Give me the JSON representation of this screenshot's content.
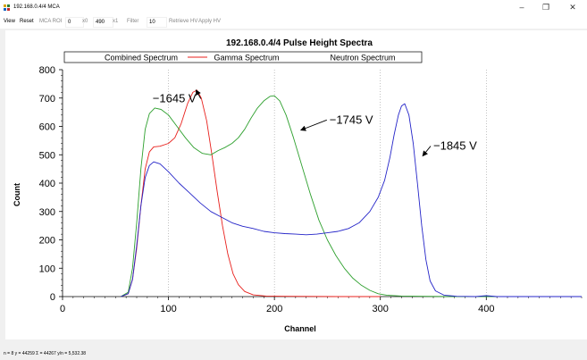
{
  "window": {
    "title": "192.168.0.4/4 MCA",
    "minimize_glyph": "–",
    "restore_glyph": "❐",
    "close_glyph": "✕"
  },
  "toolbar": {
    "view": "View",
    "reset": "Reset",
    "mca_roi": "MCA ROI",
    "x0_value": "0",
    "x0_label": "x0",
    "x1_value": "490",
    "x1_label": "x1",
    "filter_label": "Filter",
    "filter_value": "10",
    "retrieve_hv": "Retrieve HV",
    "apply_hv": "Apply HV"
  },
  "status": {
    "text": "n = 8   y = 44259   Σ = 44267   y/n = 5,532.38"
  },
  "chart_data": {
    "type": "line",
    "title": "192.168.0.4/4 Pulse Height Spectra",
    "xlabel": "Channel",
    "ylabel": "Count",
    "xlim": [
      0,
      490
    ],
    "ylim": [
      0,
      800
    ],
    "x_ticks": [
      0,
      100,
      200,
      300,
      400
    ],
    "y_ticks": [
      0,
      100,
      200,
      300,
      400,
      500,
      600,
      700,
      800
    ],
    "grid": "vertical-dotted",
    "legend_placement": "top",
    "legend": [
      "Combined Spectrum",
      "Gamma Spectrum",
      "Neutron Spectrum"
    ],
    "series": [
      {
        "name": "−1645 V",
        "color": "#e8201c",
        "points": [
          [
            55,
            0
          ],
          [
            62,
            10
          ],
          [
            66,
            60
          ],
          [
            70,
            170
          ],
          [
            74,
            320
          ],
          [
            78,
            450
          ],
          [
            82,
            510
          ],
          [
            86,
            528
          ],
          [
            92,
            530
          ],
          [
            100,
            540
          ],
          [
            106,
            560
          ],
          [
            112,
            610
          ],
          [
            118,
            680
          ],
          [
            123,
            720
          ],
          [
            127,
            728
          ],
          [
            131,
            700
          ],
          [
            136,
            620
          ],
          [
            141,
            500
          ],
          [
            146,
            370
          ],
          [
            151,
            250
          ],
          [
            156,
            150
          ],
          [
            161,
            80
          ],
          [
            166,
            42
          ],
          [
            172,
            18
          ],
          [
            180,
            6
          ],
          [
            192,
            2
          ],
          [
            210,
            1
          ],
          [
            260,
            0
          ],
          [
            300,
            0
          ]
        ]
      },
      {
        "name": "−1745 V",
        "color": "#2ea02e",
        "points": [
          [
            55,
            0
          ],
          [
            62,
            15
          ],
          [
            66,
            100
          ],
          [
            70,
            260
          ],
          [
            74,
            450
          ],
          [
            78,
            590
          ],
          [
            82,
            645
          ],
          [
            87,
            665
          ],
          [
            93,
            660
          ],
          [
            100,
            640
          ],
          [
            108,
            600
          ],
          [
            116,
            560
          ],
          [
            124,
            525
          ],
          [
            132,
            505
          ],
          [
            140,
            500
          ],
          [
            147,
            515
          ],
          [
            153,
            525
          ],
          [
            160,
            540
          ],
          [
            166,
            560
          ],
          [
            172,
            590
          ],
          [
            178,
            630
          ],
          [
            184,
            665
          ],
          [
            190,
            690
          ],
          [
            196,
            706
          ],
          [
            200,
            708
          ],
          [
            205,
            690
          ],
          [
            211,
            640
          ],
          [
            218,
            560
          ],
          [
            226,
            460
          ],
          [
            234,
            360
          ],
          [
            242,
            270
          ],
          [
            250,
            200
          ],
          [
            258,
            145
          ],
          [
            266,
            100
          ],
          [
            274,
            65
          ],
          [
            282,
            40
          ],
          [
            290,
            22
          ],
          [
            298,
            10
          ],
          [
            306,
            5
          ],
          [
            320,
            2
          ],
          [
            340,
            1
          ],
          [
            370,
            0
          ],
          [
            490,
            0
          ]
        ]
      },
      {
        "name": "−1845 V",
        "color": "#2424c8",
        "points": [
          [
            55,
            0
          ],
          [
            62,
            10
          ],
          [
            66,
            60
          ],
          [
            70,
            180
          ],
          [
            74,
            320
          ],
          [
            78,
            420
          ],
          [
            82,
            462
          ],
          [
            86,
            475
          ],
          [
            92,
            468
          ],
          [
            100,
            440
          ],
          [
            110,
            400
          ],
          [
            120,
            365
          ],
          [
            130,
            330
          ],
          [
            140,
            300
          ],
          [
            150,
            280
          ],
          [
            160,
            260
          ],
          [
            170,
            248
          ],
          [
            180,
            240
          ],
          [
            190,
            230
          ],
          [
            200,
            225
          ],
          [
            210,
            222
          ],
          [
            220,
            220
          ],
          [
            230,
            218
          ],
          [
            240,
            220
          ],
          [
            250,
            225
          ],
          [
            260,
            230
          ],
          [
            270,
            240
          ],
          [
            280,
            260
          ],
          [
            290,
            300
          ],
          [
            298,
            350
          ],
          [
            304,
            410
          ],
          [
            309,
            490
          ],
          [
            313,
            570
          ],
          [
            317,
            640
          ],
          [
            320,
            672
          ],
          [
            323,
            680
          ],
          [
            327,
            640
          ],
          [
            331,
            540
          ],
          [
            335,
            400
          ],
          [
            339,
            250
          ],
          [
            343,
            130
          ],
          [
            347,
            55
          ],
          [
            352,
            20
          ],
          [
            360,
            5
          ],
          [
            372,
            1
          ],
          [
            390,
            0
          ],
          [
            400,
            3
          ],
          [
            410,
            0
          ],
          [
            490,
            0
          ]
        ]
      }
    ],
    "annotations": [
      {
        "text": "−1645 V",
        "x": 85,
        "y": 685,
        "arrow_to": [
          126,
          728
        ]
      },
      {
        "text": "−1745 V",
        "x": 252,
        "y": 610,
        "arrow_to": [
          225,
          587
        ]
      },
      {
        "text": "−1845 V",
        "x": 350,
        "y": 518,
        "arrow_to": [
          340,
          496
        ]
      }
    ]
  }
}
